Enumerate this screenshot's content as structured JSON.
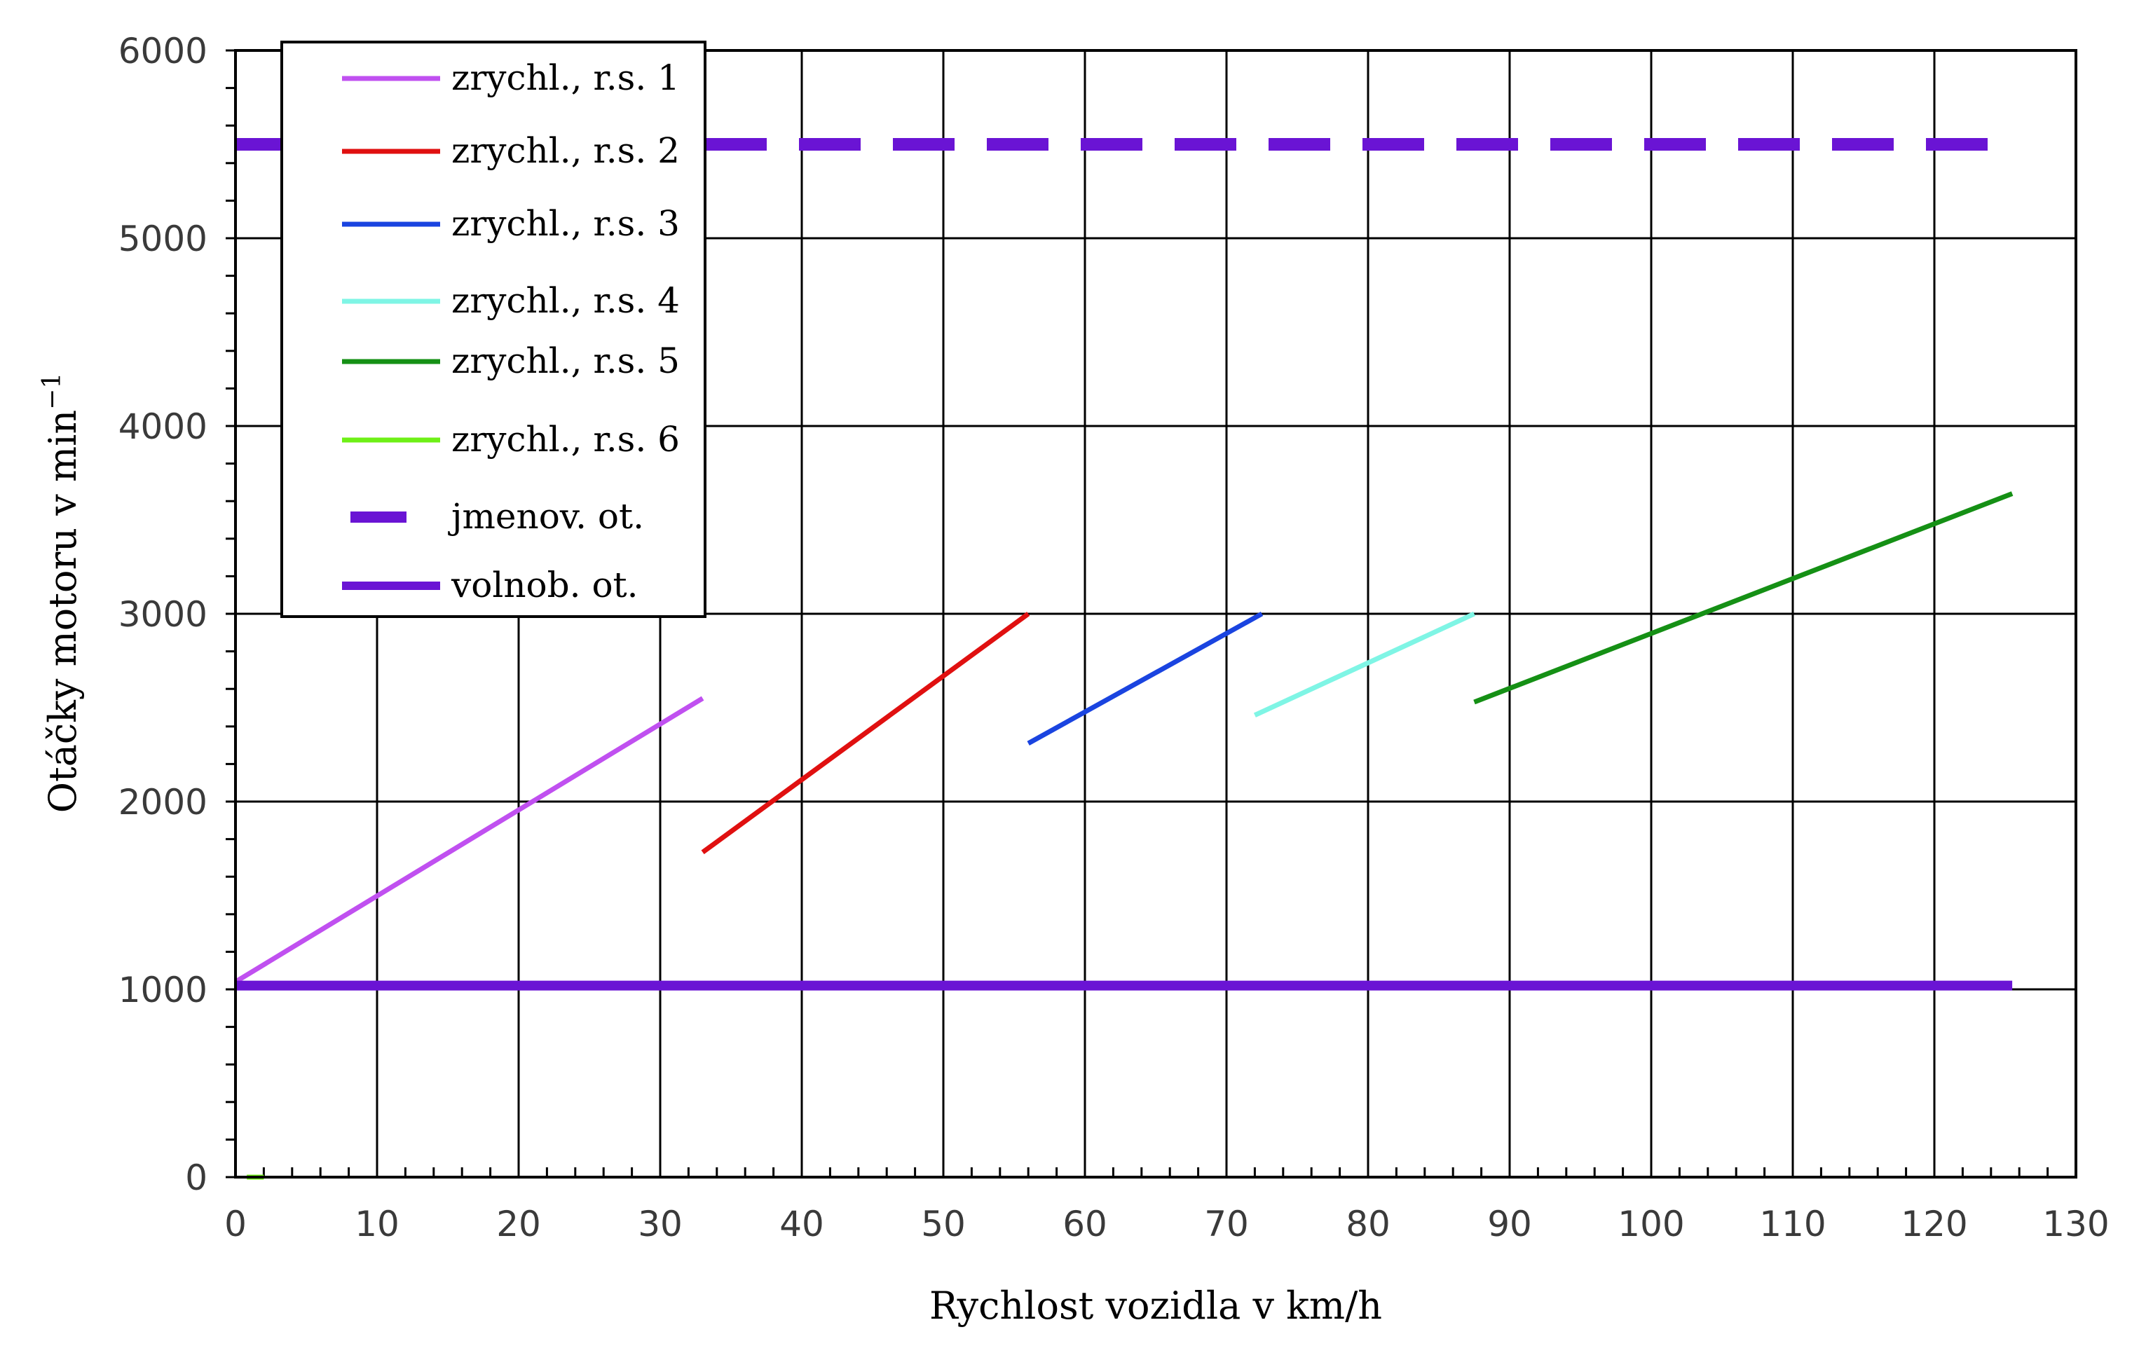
{
  "chart_data": {
    "type": "line",
    "xlabel": "Rychlost vozidla v km/h",
    "ylabel": "Otáčky motoru v min",
    "ylabel_superscript": "−1",
    "xlim": [
      0,
      130
    ],
    "ylim": [
      0,
      6000
    ],
    "x_ticks": [
      "0",
      "10",
      "20",
      "30",
      "40",
      "50",
      "60",
      "70",
      "80",
      "90",
      "100",
      "110",
      "120",
      "130"
    ],
    "y_ticks": [
      "0",
      "1000",
      "2000",
      "3000",
      "4000",
      "5000",
      "6000"
    ],
    "grid": true,
    "legend_position": "top-left",
    "series": [
      {
        "name": "zrychl., r.s. 1",
        "color": "#c050f0",
        "style": "solid",
        "x": [
          0,
          33
        ],
        "y": [
          1040,
          2550
        ]
      },
      {
        "name": "zrychl., r.s. 2",
        "color": "#e01010",
        "style": "solid",
        "x": [
          33,
          56
        ],
        "y": [
          1730,
          3000
        ]
      },
      {
        "name": "zrychl., r.s. 3",
        "color": "#1a44e0",
        "style": "solid",
        "x": [
          56,
          72.5
        ],
        "y": [
          2310,
          3000
        ]
      },
      {
        "name": "zrychl., r.s. 4",
        "color": "#7ff5e5",
        "style": "solid",
        "x": [
          72,
          87.5
        ],
        "y": [
          2460,
          3000
        ]
      },
      {
        "name": "zrychl., r.s. 5",
        "color": "#159015",
        "style": "solid",
        "x": [
          87.5,
          125.5
        ],
        "y": [
          2530,
          3640
        ]
      },
      {
        "name": "zrychl., r.s. 6",
        "color": "#6ef016",
        "style": "solid",
        "x": [
          0.8,
          2
        ],
        "y": [
          0,
          0
        ]
      },
      {
        "name": "jmenov. ot.",
        "color": "#6a14d4",
        "style": "dashed",
        "x": [
          0,
          125.5
        ],
        "y": [
          5500,
          5500
        ]
      },
      {
        "name": "volnob. ot.",
        "color": "#6a14d4",
        "style": "solid",
        "x": [
          0,
          125.5
        ],
        "y": [
          1020,
          1020
        ]
      }
    ]
  }
}
